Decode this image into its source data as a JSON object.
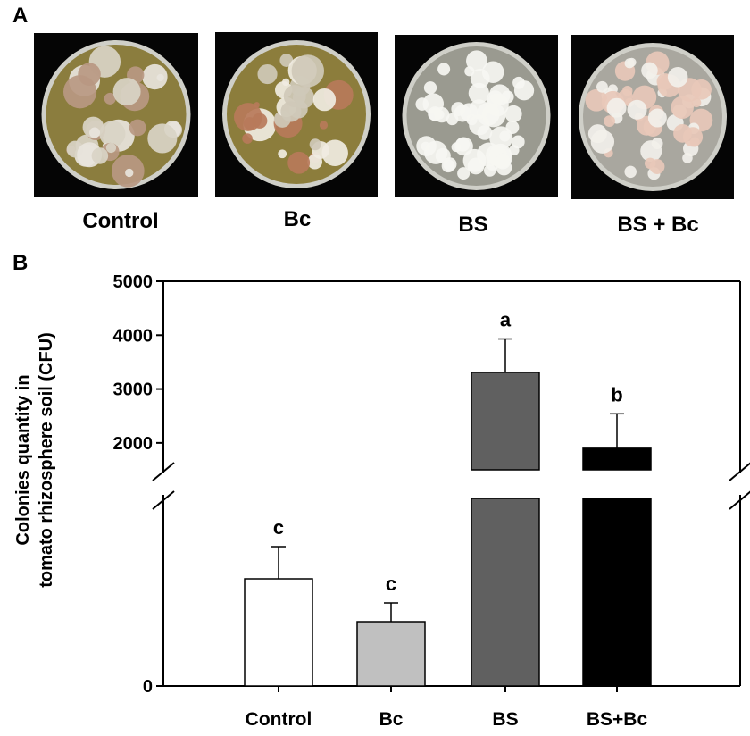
{
  "panel_a": {
    "label": "A",
    "plates": [
      {
        "caption": "Control",
        "agar_color": "#8b7d3e",
        "colony_colors": [
          "#e8e4dc",
          "#b89882",
          "#d9d4c6"
        ]
      },
      {
        "caption": "Bc",
        "agar_color": "#8c7d3c",
        "colony_colors": [
          "#f0ece2",
          "#b77a5a",
          "#cfc9b8"
        ]
      },
      {
        "caption": "BS",
        "agar_color": "#9a9a90",
        "colony_colors": [
          "#f6f6f2"
        ]
      },
      {
        "caption": "BS + Bc",
        "agar_color": "#a9a79f",
        "colony_colors": [
          "#f2f0ea",
          "#e8c8b8"
        ]
      }
    ]
  },
  "panel_b": {
    "label": "B",
    "chart_data": {
      "type": "bar",
      "ylabel_lines": [
        "Colonies quantity in",
        "tomato rhizosphere soil (CFU)"
      ],
      "categories": [
        "Control",
        "Bc",
        "BS",
        "BS+Bc"
      ],
      "values": [
        200,
        120,
        3310,
        1900
      ],
      "errors": [
        60,
        35,
        620,
        640
      ],
      "significance": [
        "c",
        "c",
        "a",
        "b"
      ],
      "bar_colors": [
        "#ffffff",
        "#c0c0c0",
        "#606060",
        "#000000"
      ],
      "axis_break": true,
      "lower_segment_range": [
        0,
        350
      ],
      "upper_segment_range": [
        1500,
        5000
      ],
      "ytick_labels": [
        "0",
        "2000",
        "3000",
        "4000",
        "5000"
      ],
      "ytick_values": [
        0,
        2000,
        3000,
        4000,
        5000
      ]
    }
  }
}
